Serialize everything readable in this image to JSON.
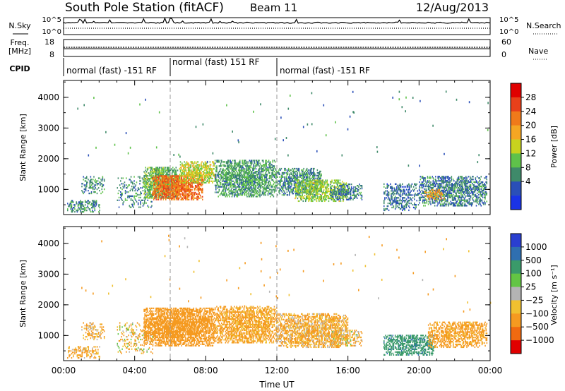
{
  "header": {
    "station": "South Pole Station (fitACF)",
    "beam": "Beam 11",
    "date": "12/Aug/2013"
  },
  "strip_panels": {
    "noise": {
      "left_label": "N.Sky",
      "right_label": "N.Search",
      "left_ticks": [
        "10^5",
        "10^0"
      ],
      "right_ticks": [
        "10^5",
        "10^0"
      ]
    },
    "freq_nave": {
      "left_label_line1": "Freq.",
      "left_label_line2": "[MHz]",
      "right_label": "Nave",
      "left_ticks": [
        "18",
        "8"
      ],
      "right_ticks": [
        "60",
        "0"
      ]
    },
    "cpid": {
      "label": "CPID",
      "segments": [
        {
          "start_hour": 0,
          "end_hour": 6,
          "text": "normal (fast) -151 RF"
        },
        {
          "start_hour": 6,
          "end_hour": 12,
          "text": "normal (fast) 151 RF"
        },
        {
          "start_hour": 12,
          "end_hour": 24,
          "text": "normal (fast) -151 RF"
        }
      ]
    }
  },
  "colors": {
    "power_scale": [
      "#1a33e6",
      "#2a4fb8",
      "#3f8a6a",
      "#5fc24a",
      "#c8d21e",
      "#f5a623",
      "#f07a1a",
      "#e8401a",
      "#e00000"
    ],
    "velocity_scale": [
      "#2a3fd0",
      "#2f6fb0",
      "#3a9a6a",
      "#63c544",
      "#b4b4b4",
      "#f0c030",
      "#f59a20",
      "#f06a10",
      "#e00000"
    ]
  },
  "chart_data": [
    {
      "type": "heatmap",
      "name": "power",
      "ylabel": "Slant Range [km]",
      "colorbar_label": "Power [dB]",
      "colorbar_ticks": [
        "28",
        "24",
        "20",
        "16",
        "12",
        "8",
        "4"
      ],
      "x_ticks": [
        "00:00",
        "04:00",
        "08:00",
        "12:00",
        "16:00",
        "20:00",
        "00:00"
      ],
      "y_ticks": [
        "1000",
        "2000",
        "3000",
        "4000"
      ],
      "xlim_hours": [
        0,
        24
      ],
      "ylim_km": [
        180,
        4550
      ],
      "vmin_db": 0,
      "vmax_db": 32,
      "blobs": [
        {
          "t0": 0.2,
          "t1": 2.0,
          "r0": 250,
          "r1": 650,
          "v": 9,
          "d": 0.45
        },
        {
          "t0": 1.0,
          "t1": 2.3,
          "r0": 850,
          "r1": 1400,
          "v": 9,
          "d": 0.35
        },
        {
          "t0": 3.0,
          "t1": 5.0,
          "r0": 400,
          "r1": 1400,
          "v": 8,
          "d": 0.25
        },
        {
          "t0": 4.5,
          "t1": 6.4,
          "r0": 700,
          "r1": 1700,
          "v": 12,
          "d": 0.85
        },
        {
          "t0": 5.0,
          "t1": 7.8,
          "r0": 650,
          "r1": 1450,
          "v": 24,
          "d": 0.85
        },
        {
          "t0": 6.5,
          "t1": 8.5,
          "r0": 1200,
          "r1": 1900,
          "v": 16,
          "d": 0.7
        },
        {
          "t0": 8.5,
          "t1": 12.0,
          "r0": 750,
          "r1": 1950,
          "v": 10,
          "d": 0.7
        },
        {
          "t0": 12.0,
          "t1": 14.5,
          "r0": 800,
          "r1": 1700,
          "v": 9,
          "d": 0.65
        },
        {
          "t0": 13.0,
          "t1": 16.0,
          "r0": 600,
          "r1": 1300,
          "v": 14,
          "d": 0.65
        },
        {
          "t0": 15.0,
          "t1": 16.8,
          "r0": 650,
          "r1": 1150,
          "v": 8,
          "d": 0.45
        },
        {
          "t0": 18.0,
          "t1": 20.0,
          "r0": 300,
          "r1": 1200,
          "v": 7,
          "d": 0.45
        },
        {
          "t0": 20.0,
          "t1": 23.8,
          "r0": 450,
          "r1": 1400,
          "v": 8,
          "d": 0.65
        },
        {
          "t0": 20.3,
          "t1": 21.4,
          "r0": 650,
          "r1": 1000,
          "v": 20,
          "d": 0.5
        }
      ]
    },
    {
      "type": "heatmap",
      "name": "velocity",
      "ylabel": "Slant Range [km]",
      "colorbar_label": "Velocity [m s⁻¹]",
      "colorbar_ticks": [
        "1000",
        "500",
        "100",
        "25",
        "−25",
        "−100",
        "−500",
        "−1000"
      ],
      "x_ticks": [
        "00:00",
        "04:00",
        "08:00",
        "12:00",
        "16:00",
        "20:00",
        "00:00"
      ],
      "y_ticks": [
        "1000",
        "2000",
        "3000",
        "4000"
      ],
      "xlabel": "Time UT",
      "xlim_hours": [
        0,
        24
      ],
      "ylim_km": [
        180,
        4550
      ],
      "blobs": [
        {
          "t0": 0.2,
          "t1": 2.0,
          "r0": 250,
          "r1": 650,
          "v": -150,
          "d": 0.45
        },
        {
          "t0": 1.0,
          "t1": 2.3,
          "r0": 850,
          "r1": 1400,
          "v": -120,
          "d": 0.35
        },
        {
          "t0": 3.0,
          "t1": 5.0,
          "r0": 400,
          "r1": 1400,
          "v": -60,
          "d": 0.25
        },
        {
          "t0": 4.5,
          "t1": 8.5,
          "r0": 650,
          "r1": 1900,
          "v": -250,
          "d": 0.85
        },
        {
          "t0": 8.5,
          "t1": 12.0,
          "r0": 750,
          "r1": 1950,
          "v": -180,
          "d": 0.7
        },
        {
          "t0": 12.0,
          "t1": 16.0,
          "r0": 600,
          "r1": 1700,
          "v": -140,
          "d": 0.65
        },
        {
          "t0": 15.0,
          "t1": 16.8,
          "r0": 650,
          "r1": 1150,
          "v": -90,
          "d": 0.45
        },
        {
          "t0": 18.0,
          "t1": 20.8,
          "r0": 350,
          "r1": 1000,
          "v": 400,
          "d": 0.6
        },
        {
          "t0": 20.5,
          "t1": 23.8,
          "r0": 600,
          "r1": 1450,
          "v": -200,
          "d": 0.6
        }
      ]
    }
  ]
}
